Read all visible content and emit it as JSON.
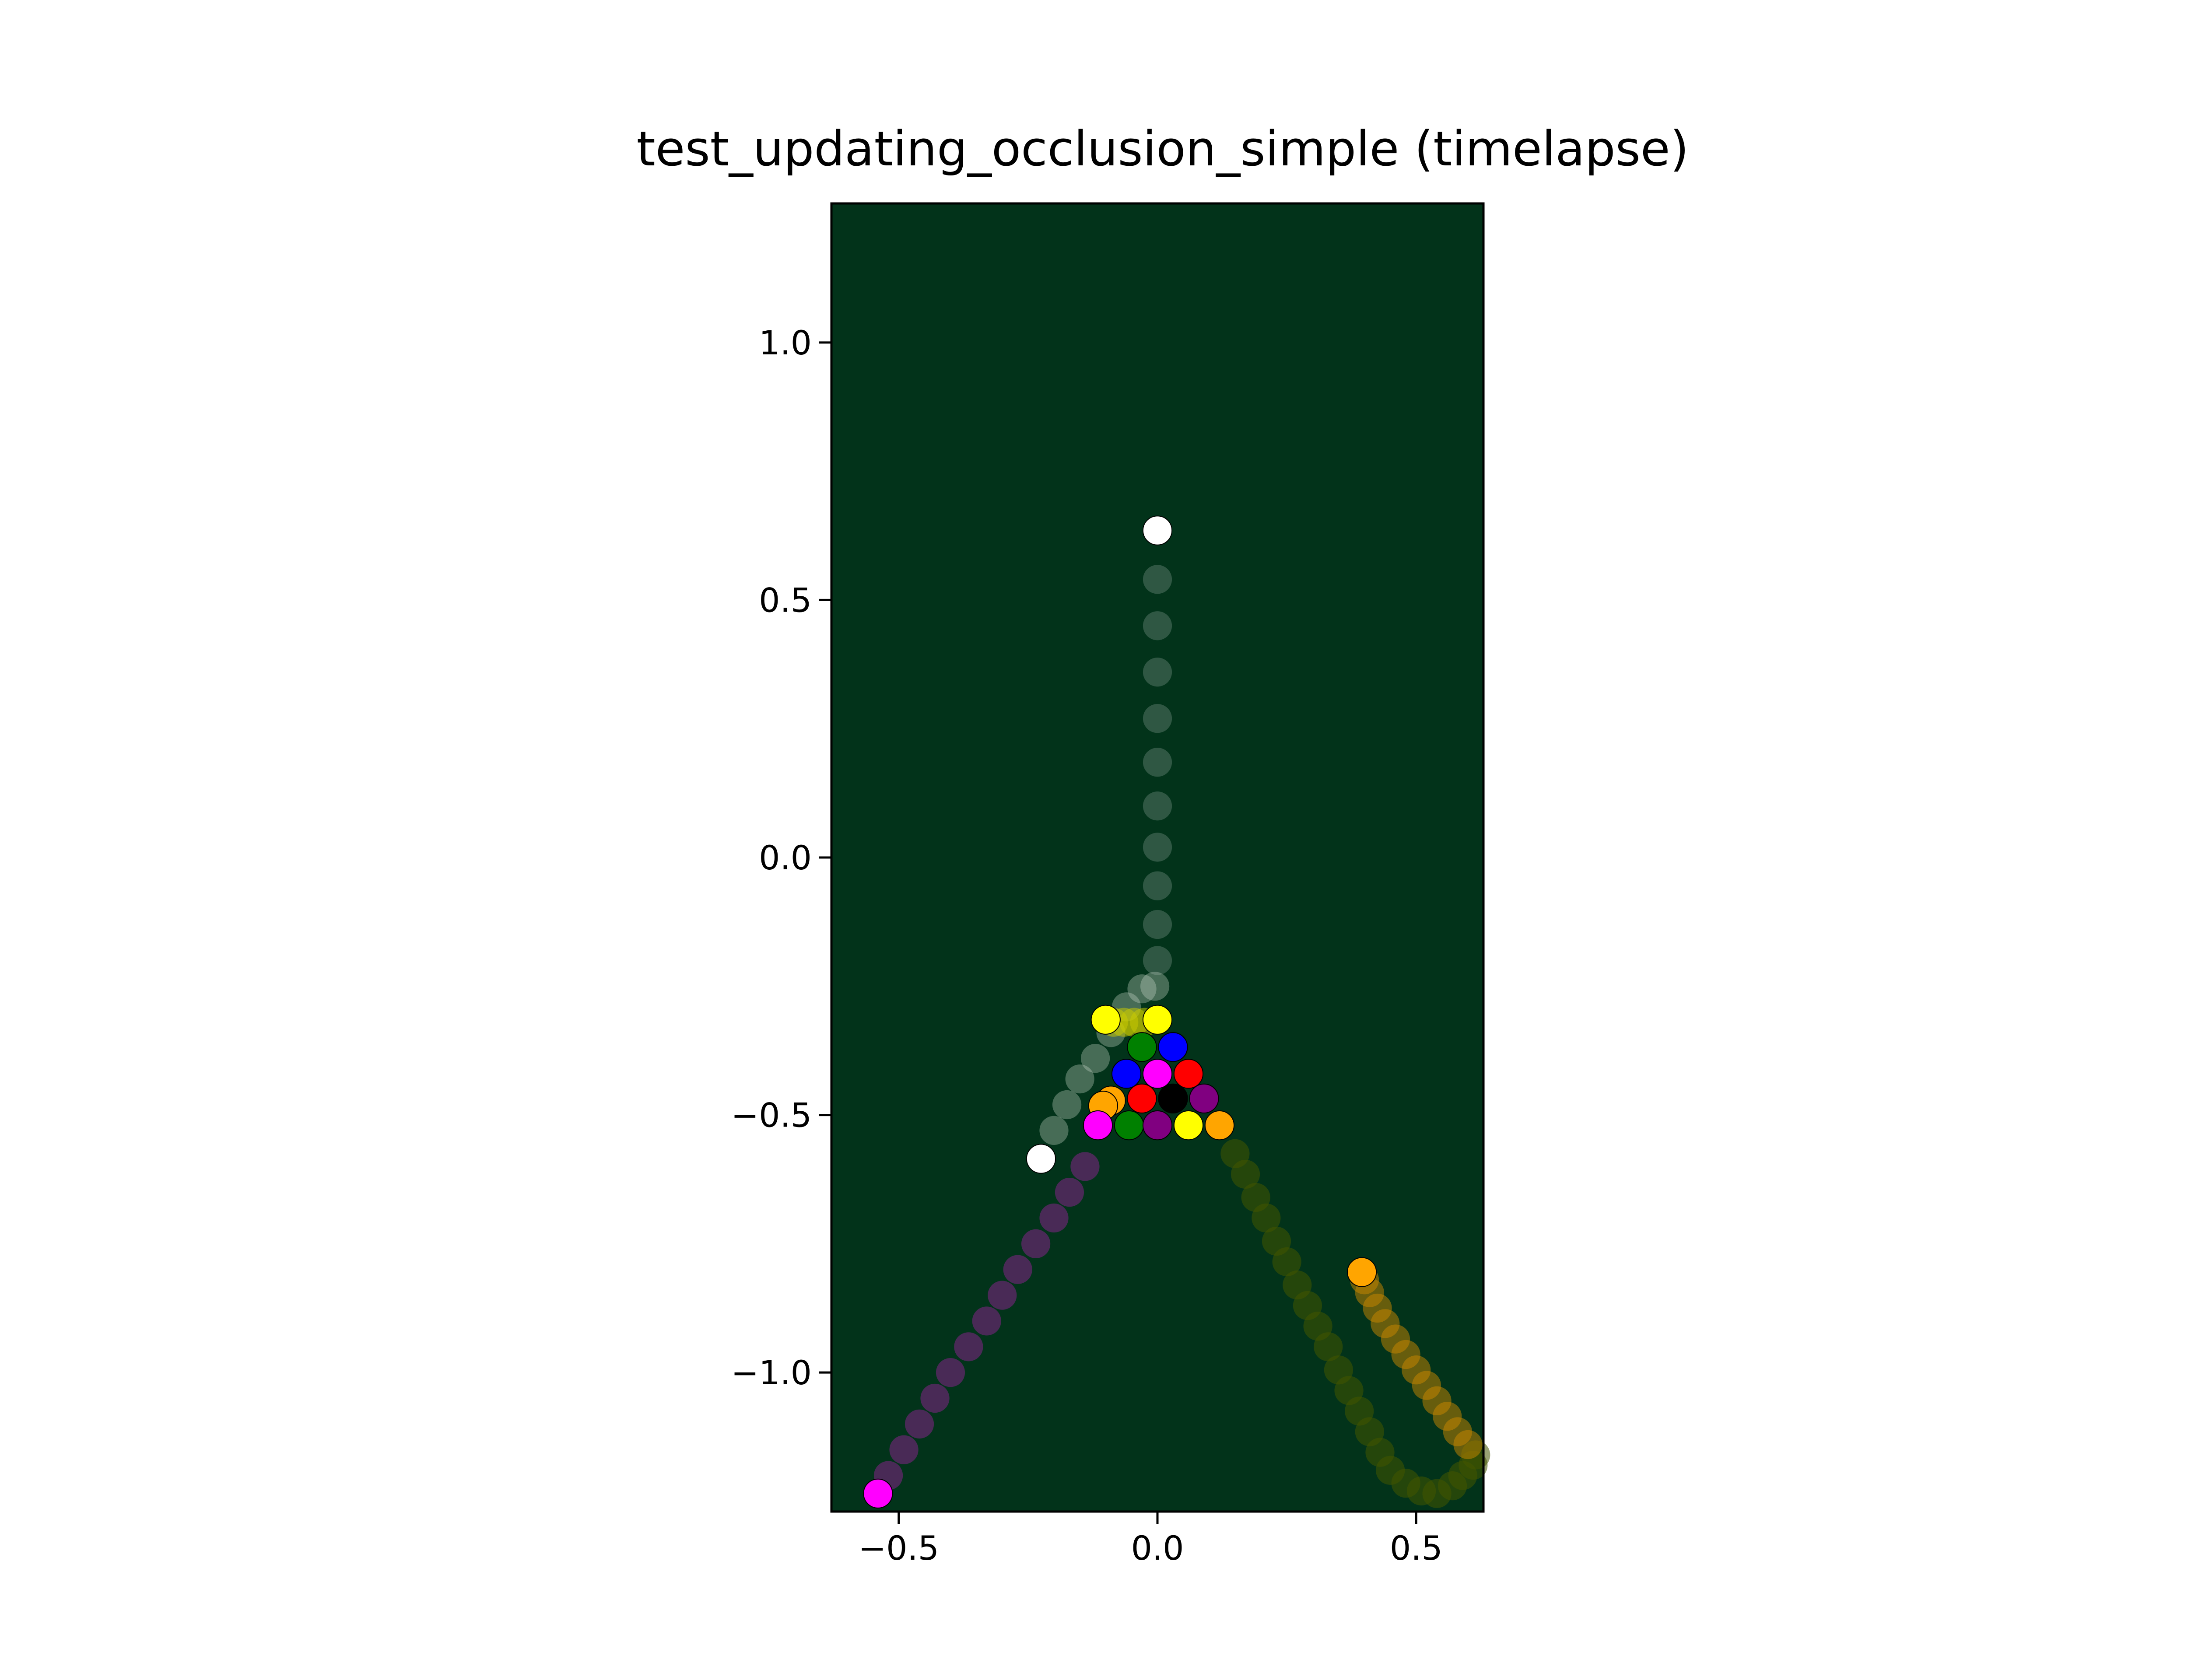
{
  "chart_data": {
    "type": "scatter",
    "title": "test_updating_occlusion_simple (timelapse)",
    "xlabel": "",
    "ylabel": "",
    "xlim": [
      -0.63,
      0.63
    ],
    "ylim": [
      -1.27,
      1.27
    ],
    "xticks": [
      {
        "value": -0.5,
        "label": "−0.5"
      },
      {
        "value": 0.0,
        "label": "0.0"
      },
      {
        "value": 0.5,
        "label": "0.5"
      }
    ],
    "yticks": [
      {
        "value": 1.0,
        "label": "1.0"
      },
      {
        "value": 0.5,
        "label": "0.5"
      },
      {
        "value": 0.0,
        "label": "0.0"
      },
      {
        "value": -0.5,
        "label": "−0.5"
      },
      {
        "value": -1.0,
        "label": "−1.0"
      }
    ],
    "grid": false,
    "background_color": "#02331a",
    "ball_radius": 0.028,
    "trails": [
      {
        "color": "#ffffff",
        "opacity": 0.18,
        "points": [
          [
            0.0,
            0.54
          ],
          [
            0.0,
            0.45
          ],
          [
            0.0,
            0.36
          ],
          [
            0.0,
            0.27
          ],
          [
            0.0,
            0.185
          ],
          [
            0.0,
            0.1
          ],
          [
            0.0,
            0.02
          ],
          [
            0.0,
            -0.055
          ],
          [
            0.0,
            -0.13
          ],
          [
            0.0,
            -0.2
          ]
        ]
      },
      {
        "color": "#c8d8c8",
        "opacity": 0.35,
        "points": [
          [
            -0.005,
            -0.25
          ],
          [
            -0.03,
            -0.255
          ],
          [
            -0.06,
            -0.29
          ],
          [
            -0.09,
            -0.34
          ],
          [
            -0.12,
            -0.39
          ],
          [
            -0.15,
            -0.43
          ],
          [
            -0.175,
            -0.48
          ],
          [
            -0.2,
            -0.53
          ]
        ]
      },
      {
        "color": "#a020a0",
        "opacity": 0.45,
        "points": [
          [
            -0.14,
            -0.6
          ],
          [
            -0.17,
            -0.65
          ],
          [
            -0.2,
            -0.7
          ],
          [
            -0.235,
            -0.75
          ],
          [
            -0.27,
            -0.8
          ],
          [
            -0.3,
            -0.85
          ],
          [
            -0.33,
            -0.9
          ],
          [
            -0.365,
            -0.95
          ],
          [
            -0.4,
            -1.0
          ],
          [
            -0.43,
            -1.05
          ],
          [
            -0.46,
            -1.1
          ],
          [
            -0.49,
            -1.15
          ],
          [
            -0.52,
            -1.2
          ]
        ]
      },
      {
        "color": "#445500",
        "opacity": 0.55,
        "points": [
          [
            0.15,
            -0.575
          ],
          [
            0.17,
            -0.615
          ],
          [
            0.19,
            -0.66
          ],
          [
            0.21,
            -0.7
          ],
          [
            0.23,
            -0.745
          ],
          [
            0.25,
            -0.785
          ],
          [
            0.27,
            -0.83
          ],
          [
            0.29,
            -0.87
          ],
          [
            0.31,
            -0.91
          ],
          [
            0.33,
            -0.95
          ],
          [
            0.35,
            -0.995
          ],
          [
            0.37,
            -1.035
          ],
          [
            0.39,
            -1.075
          ],
          [
            0.41,
            -1.115
          ],
          [
            0.43,
            -1.155
          ],
          [
            0.45,
            -1.19
          ],
          [
            0.48,
            -1.215
          ],
          [
            0.51,
            -1.23
          ],
          [
            0.54,
            -1.235
          ],
          [
            0.57,
            -1.22
          ],
          [
            0.59,
            -1.2
          ],
          [
            0.61,
            -1.18
          ],
          [
            0.615,
            -1.16
          ]
        ]
      },
      {
        "color": "#cc8800",
        "opacity": 0.5,
        "points": [
          [
            0.6,
            -1.14
          ],
          [
            0.58,
            -1.115
          ],
          [
            0.56,
            -1.085
          ],
          [
            0.54,
            -1.055
          ],
          [
            0.52,
            -1.025
          ],
          [
            0.5,
            -0.995
          ],
          [
            0.48,
            -0.965
          ],
          [
            0.46,
            -0.935
          ],
          [
            0.44,
            -0.905
          ],
          [
            0.425,
            -0.875
          ],
          [
            0.41,
            -0.845
          ],
          [
            0.4,
            -0.82
          ]
        ]
      },
      {
        "color": "#cccc00",
        "opacity": 0.5,
        "points": [
          [
            -0.085,
            -0.32
          ],
          [
            -0.065,
            -0.32
          ],
          [
            -0.045,
            -0.32
          ],
          [
            -0.025,
            -0.32
          ]
        ]
      }
    ],
    "balls": [
      {
        "name": "cue",
        "color": "#ffffff",
        "x": 0.0,
        "y": 0.635
      },
      {
        "name": "white-2",
        "color": "#ffffff",
        "x": -0.225,
        "y": -0.585
      },
      {
        "name": "yellow-1",
        "color": "#ffff00",
        "x": -0.1,
        "y": -0.315
      },
      {
        "name": "yellow-2",
        "color": "#ffff00",
        "x": 0.0,
        "y": -0.315
      },
      {
        "name": "green-1",
        "color": "#008000",
        "x": -0.03,
        "y": -0.368
      },
      {
        "name": "blue-1",
        "color": "#0000ff",
        "x": 0.03,
        "y": -0.368
      },
      {
        "name": "blue-2",
        "color": "#0000ff",
        "x": -0.06,
        "y": -0.42
      },
      {
        "name": "magenta-1",
        "color": "#ff00ff",
        "x": 0.0,
        "y": -0.42
      },
      {
        "name": "red-1",
        "color": "#ff0000",
        "x": 0.06,
        "y": -0.42
      },
      {
        "name": "orange-1",
        "color": "#ffa500",
        "x": -0.09,
        "y": -0.472
      },
      {
        "name": "orange-2",
        "color": "#ffa500",
        "x": -0.105,
        "y": -0.482
      },
      {
        "name": "red-2",
        "color": "#ff0000",
        "x": -0.03,
        "y": -0.468
      },
      {
        "name": "black-8",
        "color": "#000000",
        "x": 0.03,
        "y": -0.468
      },
      {
        "name": "purple-1",
        "color": "#800080",
        "x": 0.09,
        "y": -0.468
      },
      {
        "name": "magenta-2",
        "color": "#ff00ff",
        "x": -0.115,
        "y": -0.52
      },
      {
        "name": "green-2",
        "color": "#008000",
        "x": -0.055,
        "y": -0.52
      },
      {
        "name": "purple-2",
        "color": "#800080",
        "x": 0.0,
        "y": -0.52
      },
      {
        "name": "yellow-3",
        "color": "#ffff00",
        "x": 0.06,
        "y": -0.52
      },
      {
        "name": "orange-3",
        "color": "#ffa500",
        "x": 0.12,
        "y": -0.52
      },
      {
        "name": "magenta-3",
        "color": "#ff00ff",
        "x": -0.54,
        "y": -1.235
      },
      {
        "name": "orange-4",
        "color": "#ffa500",
        "x": 0.395,
        "y": -0.805
      }
    ]
  }
}
